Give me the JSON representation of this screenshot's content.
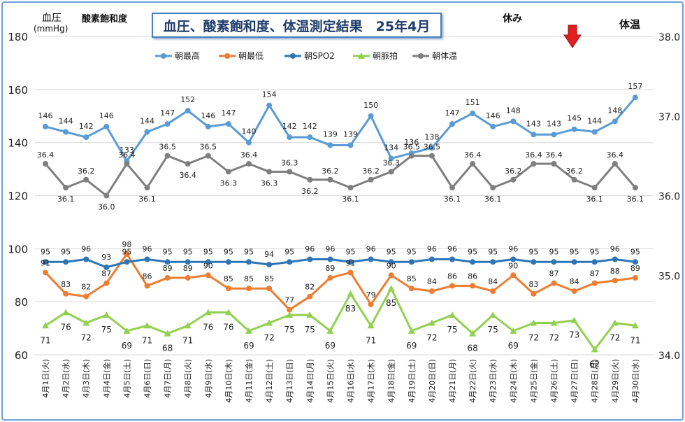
{
  "title": "血圧、酸素飽和度、体温測定結果　25年4月",
  "left_axis_label": "血圧",
  "left_axis_unit": "(mmHg)",
  "left_axis_label_2": "酸素飽和度",
  "right_axis_label": "体温",
  "annotation_rest": "休み",
  "colors": {
    "bp_high": "#5b9bd5",
    "bp_low": "#ed7d31",
    "spo2": "#2e75b6",
    "pulse": "#92d050",
    "temp": "#7f7f7f",
    "arrow": "#e02020",
    "frame": "#6fa0d8"
  },
  "chart_data": {
    "type": "line",
    "legend_position": "top",
    "grid": true,
    "ylim_left": [
      60,
      180
    ],
    "yticks_left": [
      "60",
      "80",
      "100",
      "120",
      "140",
      "160",
      "180"
    ],
    "ylim_right": [
      34.0,
      38.0
    ],
    "yticks_right": [
      "34.0",
      "35.0",
      "36.0",
      "37.0",
      "38.0"
    ],
    "categories": [
      "4月1日(火)",
      "4月2日(水)",
      "4月3日(木)",
      "4月4日(金)",
      "4月5日(土)",
      "4月6日(日)",
      "4月7日(月)",
      "4月8日(火)",
      "4月9日(水)",
      "4月10日(木)",
      "4月11日(金)",
      "4月12日(土)",
      "4月13日(日)",
      "4月14日(月)",
      "4月15日(火)",
      "4月16日(水)",
      "4月17日(木)",
      "4月18日(金)",
      "4月19日(土)",
      "4月20日(日)",
      "4月21日(月)",
      "4月22日(火)",
      "4月23日(水)",
      "4月24日(木)",
      "4月25日(金)",
      "4月26日(土)",
      "4月27日(日)",
      "4月28日(月)",
      "4月29日(火)",
      "4月30日(水)"
    ],
    "series": [
      {
        "name": "朝最高",
        "axis": "left",
        "values": [
          146,
          144,
          142,
          146,
          133,
          144,
          147,
          152,
          146,
          147,
          140,
          154,
          142,
          142,
          139,
          139,
          150,
          134,
          136,
          138,
          147,
          151,
          146,
          148,
          143,
          143,
          145,
          144,
          148,
          157
        ]
      },
      {
        "name": "朝最低",
        "axis": "left",
        "values": [
          91,
          83,
          82,
          87,
          98,
          86,
          89,
          89,
          90,
          85,
          85,
          85,
          77,
          82,
          89,
          91,
          79,
          90,
          85,
          84,
          86,
          86,
          84,
          90,
          83,
          87,
          84,
          87,
          88,
          89
        ]
      },
      {
        "name": "朝SPO2",
        "axis": "left",
        "values": [
          95,
          95,
          96,
          93,
          95,
          96,
          95,
          95,
          95,
          95,
          95,
          94,
          95,
          96,
          96,
          95,
          96,
          95,
          95,
          96,
          96,
          95,
          95,
          96,
          95,
          95,
          95,
          95,
          96,
          95
        ]
      },
      {
        "name": "朝脈拍",
        "axis": "left",
        "values": [
          71,
          76,
          72,
          75,
          69,
          71,
          68,
          71,
          76,
          76,
          69,
          72,
          75,
          75,
          69,
          83,
          71,
          85,
          69,
          72,
          75,
          68,
          75,
          69,
          72,
          72,
          73,
          62,
          72,
          71
        ]
      },
      {
        "name": "朝体温",
        "axis": "right",
        "values": [
          36.4,
          36.1,
          36.2,
          36.0,
          36.4,
          36.1,
          36.5,
          36.4,
          36.5,
          36.3,
          36.4,
          36.3,
          36.3,
          36.2,
          36.2,
          36.1,
          36.2,
          36.3,
          36.5,
          36.5,
          36.1,
          36.4,
          36.1,
          36.2,
          36.4,
          36.4,
          36.2,
          36.1,
          36.4,
          36.1
        ]
      }
    ]
  }
}
